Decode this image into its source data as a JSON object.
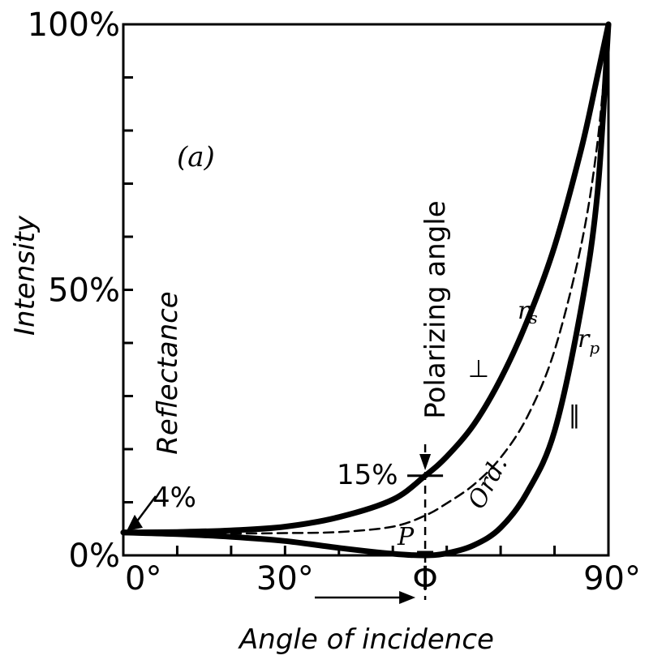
{
  "chart_data": {
    "type": "line",
    "panel_label": "(a)",
    "xlabel": "Angle of incidence",
    "ylabel": "Intensity",
    "xlim": [
      0,
      90
    ],
    "ylim": [
      0,
      100
    ],
    "x_ticks": [
      0,
      10,
      20,
      30,
      40,
      50,
      60,
      70,
      80,
      90
    ],
    "y_ticks": [
      0,
      10,
      20,
      30,
      40,
      50,
      60,
      70,
      80,
      90,
      100
    ],
    "x_tick_labels": [
      "0°",
      "30°",
      "Φ",
      "90°"
    ],
    "y_tick_labels": [
      "0%",
      "50%",
      "100%"
    ],
    "series": [
      {
        "name": "rs",
        "mark_label": "⊥",
        "x": [
          0,
          10,
          20,
          30,
          40,
          50,
          56,
          60,
          65,
          70,
          75,
          80,
          85,
          88,
          90
        ],
        "y": [
          4.3,
          4.4,
          4.7,
          5.4,
          7.2,
          10.5,
          15.0,
          18.6,
          24.6,
          33.2,
          44.3,
          58.2,
          76.7,
          90.5,
          100
        ]
      },
      {
        "name": "Ord.",
        "x": [
          0,
          10,
          20,
          30,
          40,
          50,
          56,
          60,
          65,
          70,
          75,
          80,
          85,
          88,
          90
        ],
        "y": [
          4.3,
          4.2,
          4.1,
          4.2,
          4.4,
          5.4,
          7.5,
          9.8,
          13.3,
          18.4,
          26.2,
          38.6,
          58.7,
          78.0,
          100
        ]
      },
      {
        "name": "rp",
        "mark_label": "∥",
        "x": [
          0,
          10,
          20,
          30,
          40,
          50,
          56,
          60,
          65,
          70,
          75,
          80,
          85,
          88,
          90
        ],
        "y": [
          4.3,
          4.0,
          3.5,
          2.7,
          1.4,
          0.3,
          0.0,
          0.4,
          1.9,
          5.2,
          12.0,
          23.4,
          46.9,
          68.6,
          100
        ]
      }
    ],
    "annotations": {
      "reflectance_label": "Reflectance",
      "start_value": "4%",
      "start_value_y": 4.3,
      "polarizing_angle_label": "Polarizing angle",
      "polarizing_angle_x": 56,
      "rs_at_polarizing_label": "15%",
      "rs_at_polarizing_value": 15,
      "p_label": "P"
    },
    "grid": false,
    "legend": "none"
  }
}
